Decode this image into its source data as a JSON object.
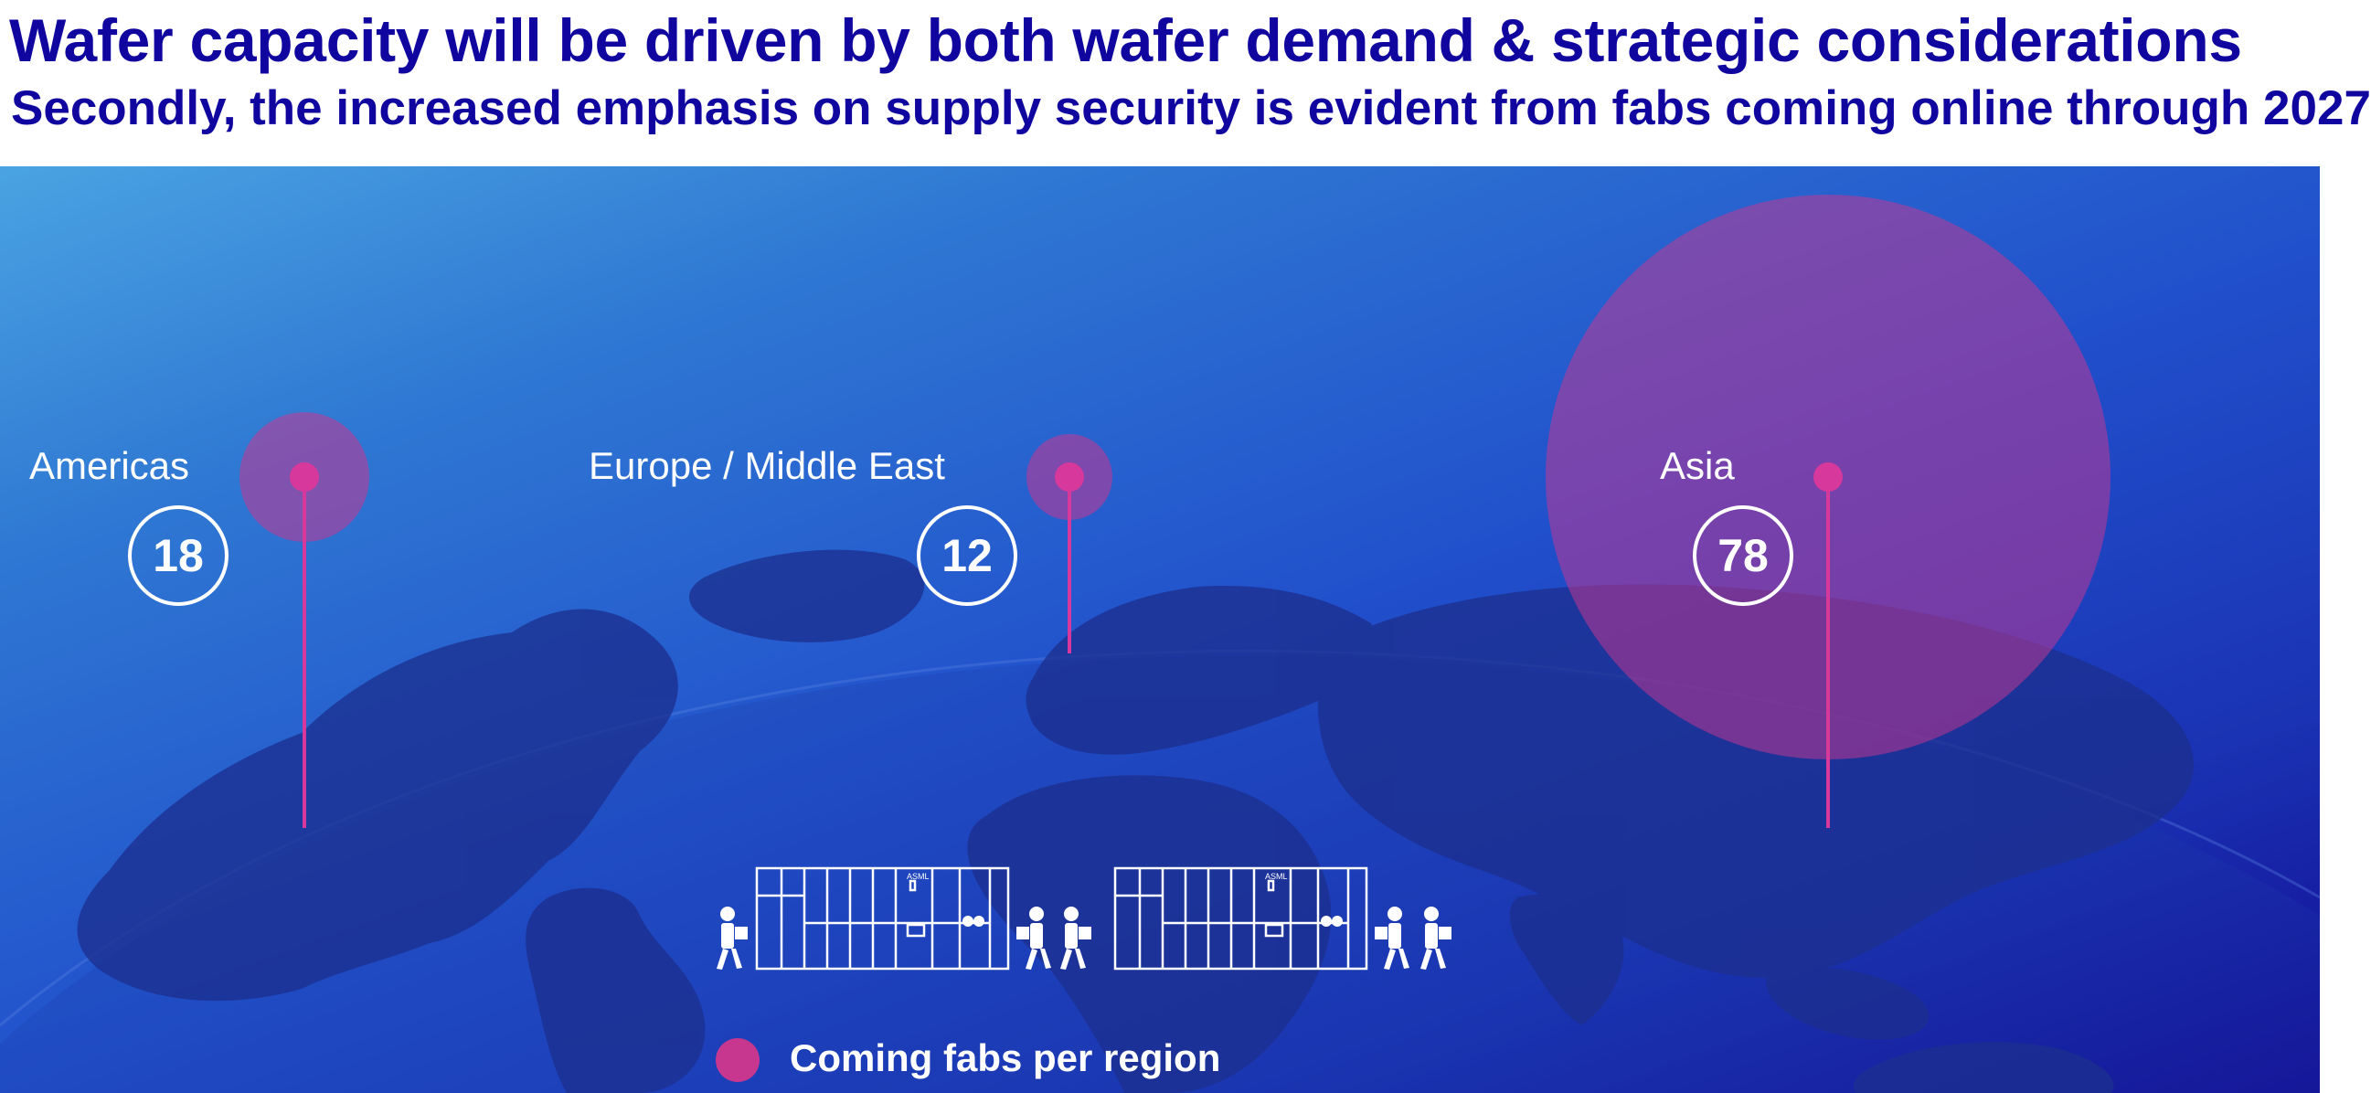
{
  "header": {
    "title": "Wafer capacity will be driven by both wafer demand & strategic considerations",
    "subtitle": "Secondly, the increased emphasis on supply security is evident from fabs coming online through 2027"
  },
  "regions": [
    {
      "name": "Americas",
      "coming_fabs": "18"
    },
    {
      "name": "Europe / Middle East",
      "coming_fabs": "12"
    },
    {
      "name": "Asia",
      "coming_fabs": "78"
    }
  ],
  "legend": {
    "label": "Coming fabs per region"
  },
  "illustration": {
    "machine_brand": "ASML"
  },
  "colors": {
    "title": "#10069f",
    "bubble": "#c7378f",
    "background_start": "#4aa3e2",
    "background_end": "#130b94"
  }
}
